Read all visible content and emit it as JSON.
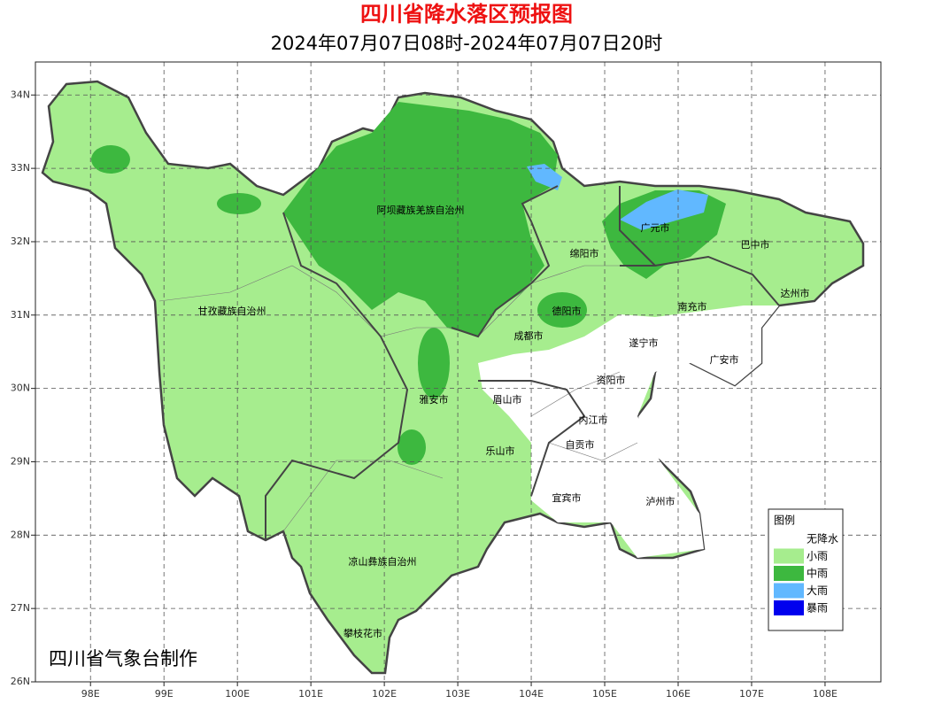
{
  "map": {
    "title": "四川省降水落区预报图",
    "subtitle": "2024年07月07日08时-2024年07月07日20时",
    "xlim": [
      97.25,
      108.76
    ],
    "ylim": [
      26,
      34.45
    ],
    "xticks": [
      {
        "value": 98,
        "label": "98E"
      },
      {
        "value": 99,
        "label": "99E"
      },
      {
        "value": 100,
        "label": "100E"
      },
      {
        "value": 101,
        "label": "101E"
      },
      {
        "value": 102,
        "label": "102E"
      },
      {
        "value": 103,
        "label": "103E"
      },
      {
        "value": 104,
        "label": "104E"
      },
      {
        "value": 105,
        "label": "105E"
      },
      {
        "value": 106,
        "label": "106E"
      },
      {
        "value": 107,
        "label": "107E"
      },
      {
        "value": 108,
        "label": "108E"
      }
    ],
    "yticks": [
      {
        "value": 26,
        "label": "26N"
      },
      {
        "value": 27,
        "label": "27N"
      },
      {
        "value": 28,
        "label": "28N"
      },
      {
        "value": 29,
        "label": "29N"
      },
      {
        "value": 30,
        "label": "30N"
      },
      {
        "value": 31,
        "label": "31N"
      },
      {
        "value": 32,
        "label": "32N"
      },
      {
        "value": 33,
        "label": "33N"
      },
      {
        "value": 34,
        "label": "34N"
      }
    ],
    "cities": [
      "阿坝藏族羌族自治州",
      "甘孜藏族自治州",
      "广元市",
      "巴中市",
      "绵阳市",
      "达州市",
      "德阳市",
      "南充市",
      "成都市",
      "遂宁市",
      "广安市",
      "资阳市",
      "雅安市",
      "眉山市",
      "内江市",
      "自贡市",
      "乐山市",
      "宜宾市",
      "泸州市",
      "凉山彝族自治州",
      "攀枝花市"
    ],
    "legend": {
      "title": "图例",
      "items": [
        {
          "label": "无降水",
          "color": "#ffffff"
        },
        {
          "label": "小雨",
          "color": "#a6ed8e"
        },
        {
          "label": "中雨",
          "color": "#3db83f"
        },
        {
          "label": "大雨",
          "color": "#61b8ff"
        },
        {
          "label": "暴雨",
          "color": "#0000ee"
        }
      ]
    },
    "credit": "四川省气象台制作"
  }
}
